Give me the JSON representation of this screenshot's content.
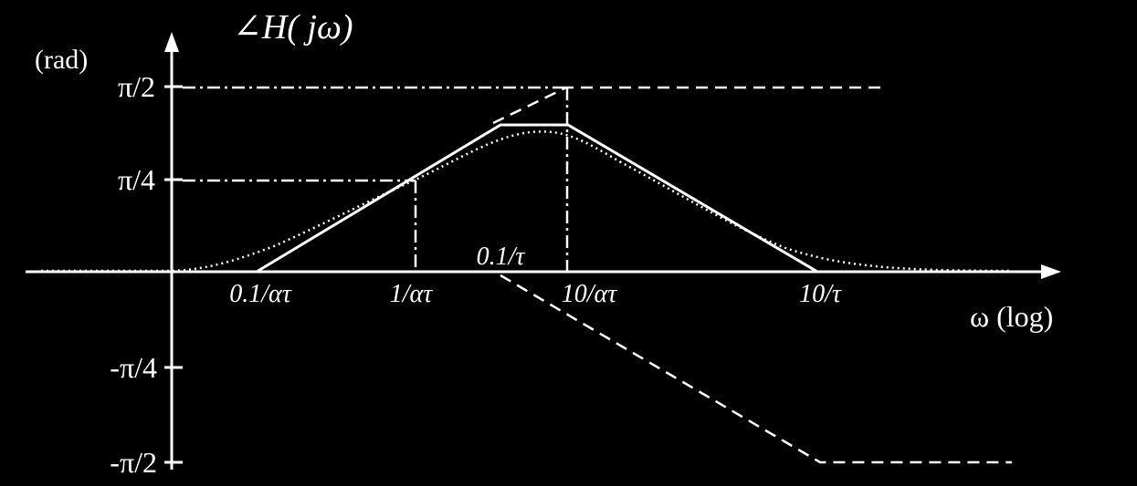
{
  "diagram": {
    "y_axis_title": "∠H( jω)",
    "y_axis_unit": "(rad)",
    "x_axis_title": "ω (log)",
    "y_ticks": [
      "π/2",
      "π/4",
      "-π/4",
      "-π/2"
    ],
    "x_labels": {
      "tick_a": "0.1/ατ",
      "tick_b": "1/ατ",
      "tick_c": "0.1/τ",
      "tick_d": "10/ατ",
      "tick_e": "10/τ"
    },
    "colors": {
      "background": "#000000",
      "lines": "#ffffff"
    }
  }
}
